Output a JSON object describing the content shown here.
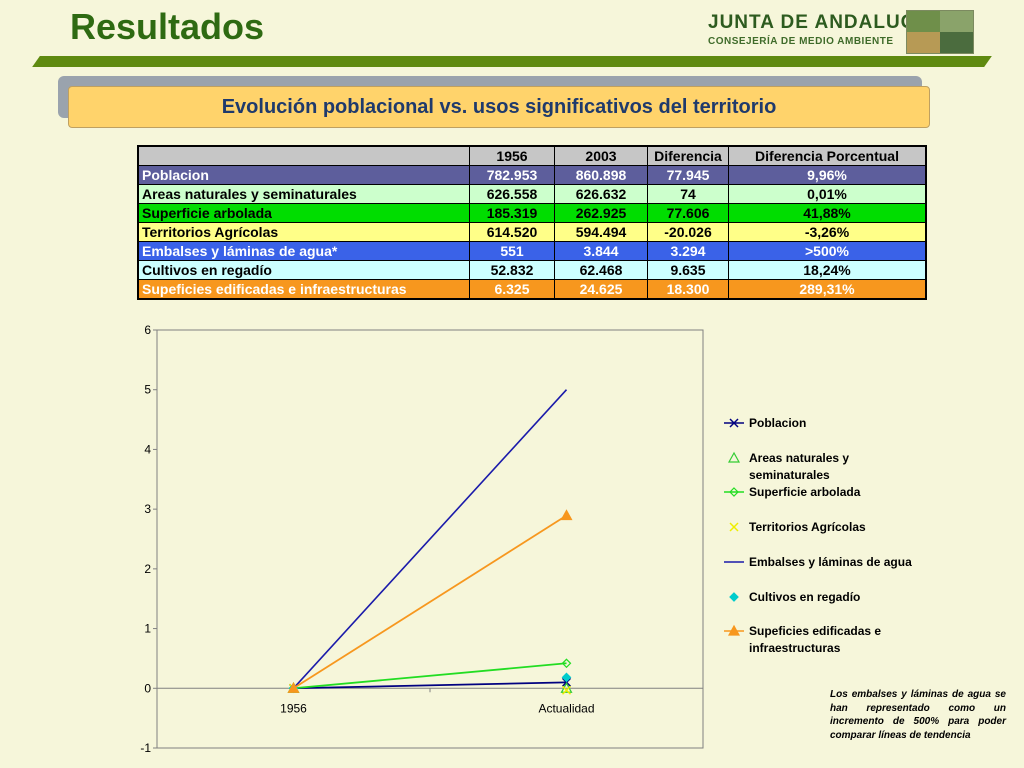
{
  "header": {
    "title": "Resultados",
    "logo_line1": "JUNTA DE ANDALUCIA",
    "logo_line2": "CONSEJERÍA DE MEDIO AMBIENTE"
  },
  "banner": {
    "text": "Evolución poblacional vs. usos significativos del territorio"
  },
  "table": {
    "headers": [
      "",
      "1956",
      "2003",
      "Diferencia",
      "Diferencia Porcentual"
    ],
    "rows": [
      {
        "label": "Poblacion",
        "v1956": "782.953",
        "v2003": "860.898",
        "diff": "77.945",
        "pct": "9,96%",
        "bg": "#5d5e9c",
        "color": "#ffffff"
      },
      {
        "label": "Areas naturales y seminaturales",
        "v1956": "626.558",
        "v2003": "626.632",
        "diff": "74",
        "pct": "0,01%",
        "bg": "#ccffcc",
        "color": "#000000"
      },
      {
        "label": "Superficie arbolada",
        "v1956": "185.319",
        "v2003": "262.925",
        "diff": "77.606",
        "pct": "41,88%",
        "bg": "#00dd00",
        "color": "#000000"
      },
      {
        "label": "Territorios Agrícolas",
        "v1956": "614.520",
        "v2003": "594.494",
        "diff": "-20.026",
        "pct": "-3,26%",
        "bg": "#ffff88",
        "color": "#000000"
      },
      {
        "label": "Embalses y láminas de agua*",
        "v1956": "551",
        "v2003": "3.844",
        "diff": "3.294",
        "pct": ">500%",
        "bg": "#3a62e8",
        "color": "#ffffff"
      },
      {
        "label": "Cultivos en regadío",
        "v1956": "52.832",
        "v2003": "62.468",
        "diff": "9.635",
        "pct": "18,24%",
        "bg": "#ccffff",
        "color": "#000000"
      },
      {
        "label": "Supeficies edificadas e infraestructuras",
        "v1956": "6.325",
        "v2003": "24.625",
        "diff": "18.300",
        "pct": "289,31%",
        "bg": "#f7971e",
        "color": "#ffffff"
      }
    ]
  },
  "chart_data": {
    "type": "line",
    "categories": [
      "1956",
      "Actualidad"
    ],
    "ylim": [
      -1,
      6
    ],
    "yticks": [
      "-1",
      "0",
      "1",
      "2",
      "3",
      "4",
      "5",
      "6"
    ],
    "grid": false,
    "legend_position": "right",
    "series": [
      {
        "name": "Poblacion",
        "values": [
          0,
          0.0996
        ],
        "color": "#000080",
        "marker": "x",
        "line": true
      },
      {
        "name": "Areas naturales y seminaturales",
        "values": [
          0,
          0.0001
        ],
        "color": "#33cc33",
        "marker": "triangle-open",
        "line": false
      },
      {
        "name": "Superficie arbolada",
        "values": [
          0,
          0.4188
        ],
        "color": "#22dd22",
        "marker": "diamond-open",
        "line": true
      },
      {
        "name": "Territorios Agrícolas",
        "values": [
          0,
          -0.0326
        ],
        "color": "#eeee00",
        "marker": "x",
        "line": false
      },
      {
        "name": "Embalses y láminas de agua",
        "values": [
          0,
          5
        ],
        "color": "#1a1aaa",
        "marker": "none",
        "line": true
      },
      {
        "name": "Cultivos en regadío",
        "values": [
          0,
          0.1824
        ],
        "color": "#00cccc",
        "marker": "diamond",
        "line": false
      },
      {
        "name": "Supeficies edificadas e infraestructuras",
        "values": [
          0,
          2.8931
        ],
        "color": "#f7971e",
        "marker": "triangle",
        "line": true
      }
    ],
    "legend_labels": [
      [
        "Poblacion"
      ],
      [
        "Areas naturales y",
        "seminaturales"
      ],
      [
        "Superficie arbolada"
      ],
      [
        "Territorios Agrícolas"
      ],
      [
        "Embalses y láminas de agua"
      ],
      [
        "Cultivos en regadío"
      ],
      [
        "Supeficies edificadas e",
        "infraestructuras"
      ]
    ]
  },
  "note": {
    "text": "Los embalses y láminas de agua se han representado como un incremento de 500% para poder comparar líneas de tendencia"
  }
}
